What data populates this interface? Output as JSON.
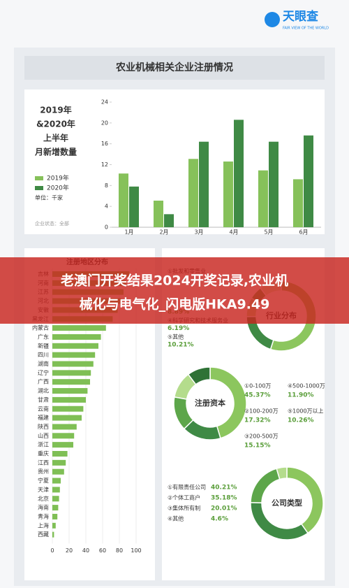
{
  "header": {
    "logo": "天眼查",
    "logo_sub": "FAIR VIEW OF THE WORLD"
  },
  "title": "农业机械相关企业注册情况",
  "banner": [
    "老澳门开奖结果2024开奖记录,农业机",
    "械化与电气化_闪电版HKA9.49"
  ],
  "chart_data": [
    {
      "type": "bar",
      "title_lines": [
        "2019年",
        "&2020年",
        "上半年",
        "月新增数量"
      ],
      "unit": "单位：千家",
      "note": "企业状态：全部",
      "categories": [
        "1月",
        "2月",
        "3月",
        "4月",
        "5月",
        "6月"
      ],
      "series": [
        {
          "name": "2019年",
          "color": "#86c15a",
          "values": [
            10.3,
            5.1,
            13.1,
            12.6,
            10.9,
            9.2
          ]
        },
        {
          "name": "2020年",
          "color": "#3f8a45",
          "values": [
            7.8,
            2.5,
            16.4,
            20.6,
            16.4,
            17.6
          ]
        }
      ],
      "ylim": [
        0,
        24
      ],
      "yticks": [
        0,
        4,
        8,
        12,
        16,
        20,
        24
      ]
    },
    {
      "type": "hbar",
      "title": "注册地区分布",
      "color": "#7fbf55",
      "categories": [
        "吉林",
        "河南",
        "江苏",
        "河北",
        "安徽",
        "黑龙江",
        "内蒙古",
        "广东",
        "新疆",
        "四川",
        "湖南",
        "辽宁",
        "广西",
        "湖北",
        "甘肃",
        "云南",
        "福建",
        "陕西",
        "山西",
        "浙江",
        "重庆",
        "江西",
        "贵州",
        "宁夏",
        "天津",
        "北京",
        "海南",
        "青海",
        "上海",
        "西藏"
      ],
      "values": [
        92,
        88,
        85,
        82,
        78,
        72,
        64,
        58,
        55,
        51,
        49,
        46,
        45,
        42,
        40,
        37,
        35,
        29,
        26,
        25,
        18,
        16,
        14,
        10,
        9,
        8,
        7,
        6,
        4,
        2
      ],
      "xlim": [
        0,
        100
      ],
      "xticks": [
        0,
        20,
        40,
        60,
        80,
        100
      ]
    },
    {
      "type": "donut",
      "center_label": "行业分布",
      "colors": [
        "#8cc65e",
        "#3f8a45",
        "#b4dc8c",
        "#5da64a",
        "#d2ecb8"
      ],
      "categories": [
        "①批发和零售业",
        null,
        null,
        "④科学研究和技术服务业",
        "⑤其他"
      ],
      "values": [
        55.0,
        19.71,
        8.89,
        6.19,
        10.21
      ],
      "value_labels": [
        null,
        null,
        "8.89%",
        "6.19%",
        "10.21%"
      ]
    },
    {
      "type": "donut",
      "center_label": "注册资本",
      "colors": [
        "#8cc65e",
        "#3f8a45",
        "#5da64a",
        "#b4dc8c",
        "#2f7236"
      ],
      "categories": [
        "①0-100万",
        "②100-200万",
        "③200-500万",
        "④500-1000万",
        "⑤1000万以上"
      ],
      "values": [
        45.37,
        17.32,
        15.15,
        11.9,
        10.26
      ],
      "value_labels": [
        "45.37%",
        "17.32%",
        "15.15%",
        "11.90%",
        "10.26%"
      ]
    },
    {
      "type": "donut",
      "center_label": "公司类型",
      "colors": [
        "#8cc65e",
        "#3f8a45",
        "#5da64a",
        "#b4dc8c"
      ],
      "categories": [
        "①有限责任公司",
        "②个体工商户",
        "③集体所有制",
        "④其他"
      ],
      "values": [
        40.21,
        35.18,
        20.01,
        4.6
      ],
      "value_labels": [
        "40.21%",
        "35.18%",
        "20.01%",
        "4.6%"
      ]
    }
  ]
}
